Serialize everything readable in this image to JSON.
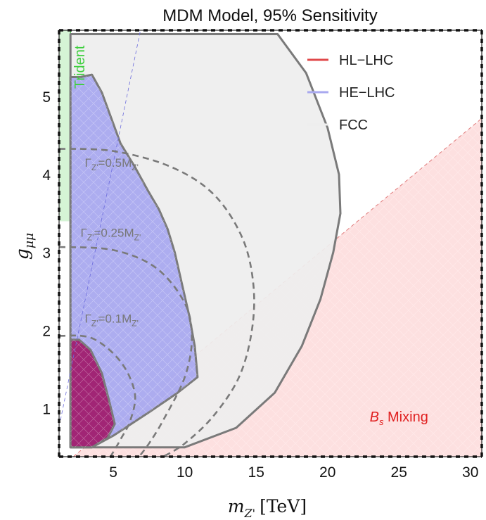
{
  "chart_data": {
    "type": "area",
    "title": "MDM Model, 95% Sensitivity",
    "xlabel_main": "m",
    "xlabel_sub": "Z'",
    "xlabel_unit": "[TeV]",
    "ylabel_main": "g",
    "ylabel_sub": "μμ",
    "xlim": [
      1.2,
      30.8
    ],
    "ylim": [
      0.38,
      5.85
    ],
    "x_ticks": [
      "5",
      "10",
      "15",
      "20",
      "25",
      "30"
    ],
    "x_tick_values": [
      5,
      10,
      15,
      20,
      25,
      30
    ],
    "y_ticks": [
      "1",
      "2",
      "3",
      "4",
      "5"
    ],
    "y_tick_values": [
      1,
      2,
      3,
      4,
      5
    ],
    "grid": false,
    "legend_position": "top-right",
    "legend": [
      {
        "label": "HL−LHC",
        "color": "#e0484a"
      },
      {
        "label": "HE−LHC",
        "color": "#a9a9ef"
      },
      {
        "label": "FCC",
        "color": "#eeeeee"
      }
    ],
    "regions": [
      {
        "name": "FCC",
        "color": "#eeeeee",
        "outline": [
          [
            2.0,
            5.8
          ],
          [
            16.5,
            5.8
          ],
          [
            18.5,
            5.3
          ],
          [
            20.0,
            4.6
          ],
          [
            20.8,
            4.0
          ],
          [
            20.9,
            3.5
          ],
          [
            20.4,
            3.0
          ],
          [
            19.5,
            2.4
          ],
          [
            18.2,
            1.8
          ],
          [
            16.3,
            1.2
          ],
          [
            13.6,
            0.75
          ],
          [
            10.0,
            0.5
          ],
          [
            2.0,
            0.5
          ]
        ]
      },
      {
        "name": "HE-LHC",
        "color": "#a9a9ef",
        "outline": [
          [
            2.0,
            0.5
          ],
          [
            2.0,
            5.25
          ],
          [
            2.7,
            5.25
          ],
          [
            3.5,
            5.28
          ],
          [
            4.2,
            5.05
          ],
          [
            4.8,
            4.75
          ],
          [
            5.5,
            4.4
          ],
          [
            6.5,
            4.1
          ],
          [
            7.4,
            3.8
          ],
          [
            8.2,
            3.55
          ],
          [
            8.8,
            3.3
          ],
          [
            9.3,
            3.0
          ],
          [
            9.8,
            2.6
          ],
          [
            10.3,
            2.2
          ],
          [
            10.7,
            1.8
          ],
          [
            10.9,
            1.4
          ],
          [
            9.5,
            1.2
          ],
          [
            7.5,
            0.95
          ],
          [
            5.0,
            0.65
          ],
          [
            3.5,
            0.5
          ]
        ]
      },
      {
        "name": "HL-LHC",
        "color": "#a01e6e",
        "outline": [
          [
            2.0,
            0.5
          ],
          [
            2.0,
            1.88
          ],
          [
            2.6,
            1.88
          ],
          [
            3.4,
            1.75
          ],
          [
            4.2,
            1.45
          ],
          [
            4.7,
            1.1
          ],
          [
            5.1,
            0.8
          ],
          [
            4.6,
            0.62
          ],
          [
            3.5,
            0.5
          ]
        ]
      },
      {
        "name": "Trident",
        "color": "#3fcf3f",
        "x_range": [
          1.2,
          2.0
        ],
        "y_range": [
          3.4,
          5.85
        ],
        "label": "Trident"
      },
      {
        "name": "Bs Mixing",
        "color": "#fde0e0",
        "line": [
          [
            2.2,
            0.38
          ],
          [
            30.8,
            4.72
          ]
        ],
        "label_main": "B",
        "label_sub": "s",
        "label_rest": " Mixing",
        "label_position": [
          25.0,
          0.83
        ]
      }
    ],
    "width_contours": [
      {
        "label_main": "Γ",
        "label_sub": "Z'",
        "label_rest": "=0.5M",
        "label_sub2": "Z'",
        "value": 0.5,
        "points": [
          [
            1.2,
            4.33
          ],
          [
            5.0,
            4.3
          ],
          [
            9.0,
            4.1
          ],
          [
            12.0,
            3.75
          ],
          [
            14.0,
            3.2
          ],
          [
            14.8,
            2.6
          ],
          [
            14.7,
            2.0
          ],
          [
            13.8,
            1.4
          ],
          [
            12.0,
            0.9
          ],
          [
            10.0,
            0.55
          ],
          [
            8.5,
            0.38
          ]
        ],
        "label_position": [
          3.0,
          4.1
        ]
      },
      {
        "label_main": "Γ",
        "label_sub": "Z'",
        "label_rest": "=0.25M",
        "label_sub2": "Z'",
        "value": 0.25,
        "points": [
          [
            1.2,
            3.07
          ],
          [
            5.0,
            3.03
          ],
          [
            8.0,
            2.8
          ],
          [
            10.0,
            2.35
          ],
          [
            10.5,
            1.9
          ],
          [
            10.0,
            1.4
          ],
          [
            8.5,
            0.85
          ],
          [
            7.5,
            0.55
          ],
          [
            6.8,
            0.38
          ]
        ],
        "label_position": [
          2.7,
          3.2
        ]
      },
      {
        "label_main": "Γ",
        "label_sub": "Z'",
        "label_rest": "=0.1M",
        "label_sub2": "Z'",
        "value": 0.1,
        "points": [
          [
            1.2,
            1.93
          ],
          [
            3.5,
            1.9
          ],
          [
            5.5,
            1.6
          ],
          [
            6.5,
            1.2
          ],
          [
            6.2,
            0.85
          ],
          [
            5.5,
            0.6
          ],
          [
            4.8,
            0.38
          ]
        ],
        "label_position": [
          3.0,
          2.1
        ]
      }
    ],
    "diagonal_line": [
      [
        1.3,
        0.85
      ],
      [
        6.9,
        5.85
      ]
    ]
  }
}
